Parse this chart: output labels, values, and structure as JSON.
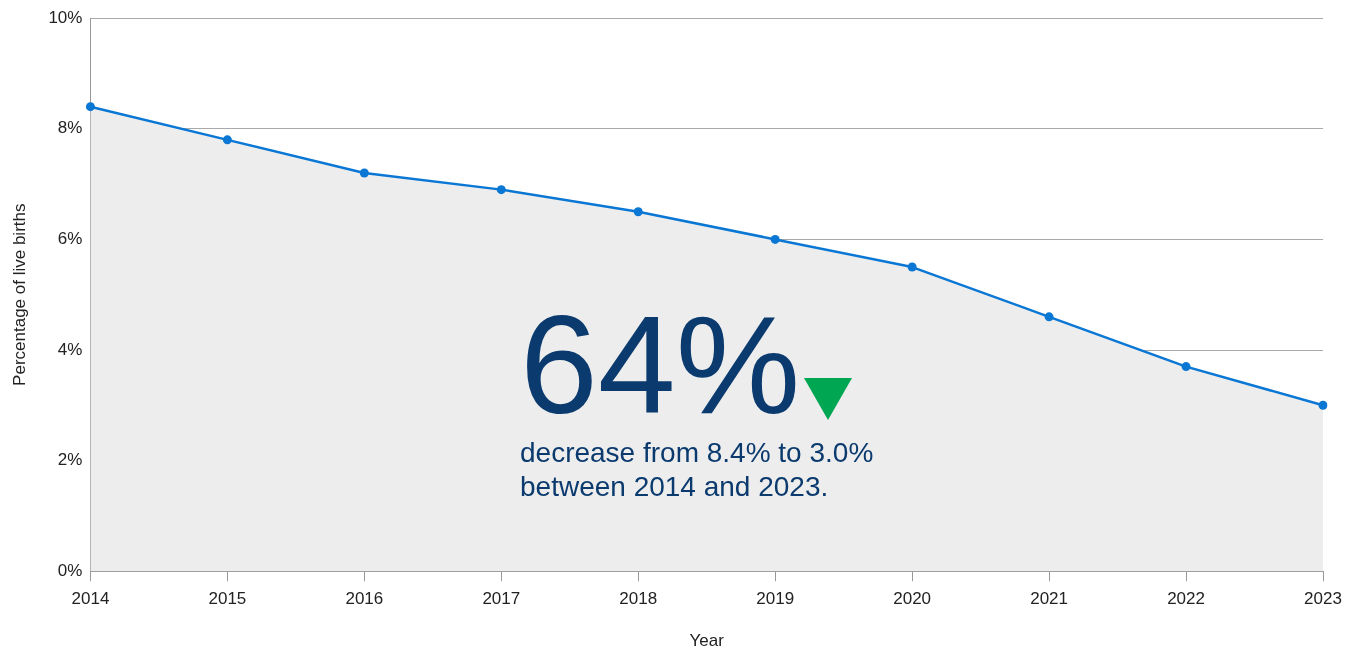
{
  "chart_data": {
    "type": "area",
    "xlabel": "Year",
    "ylabel": "Percentage of live births",
    "categories": [
      "2014",
      "2015",
      "2016",
      "2017",
      "2018",
      "2019",
      "2020",
      "2021",
      "2022",
      "2023"
    ],
    "series": [
      {
        "color": "#0a77d4",
        "values": [
          8.4,
          7.8,
          7.2,
          6.9,
          6.5,
          6.0,
          5.5,
          4.6,
          3.7,
          3.0
        ]
      }
    ],
    "ylim": [
      0,
      10
    ],
    "yticks": [
      {
        "value": 0,
        "label": "0%"
      },
      {
        "value": 2,
        "label": "2%"
      },
      {
        "value": 4,
        "label": "4%"
      },
      {
        "value": 6,
        "label": "6%"
      },
      {
        "value": 8,
        "label": "8%"
      },
      {
        "value": 10,
        "label": "10%"
      }
    ],
    "grid": "y",
    "marker": "circle",
    "annotations": [
      "64%",
      "decrease from 8.4% to 3.0% between 2014 and 2023."
    ]
  }
}
